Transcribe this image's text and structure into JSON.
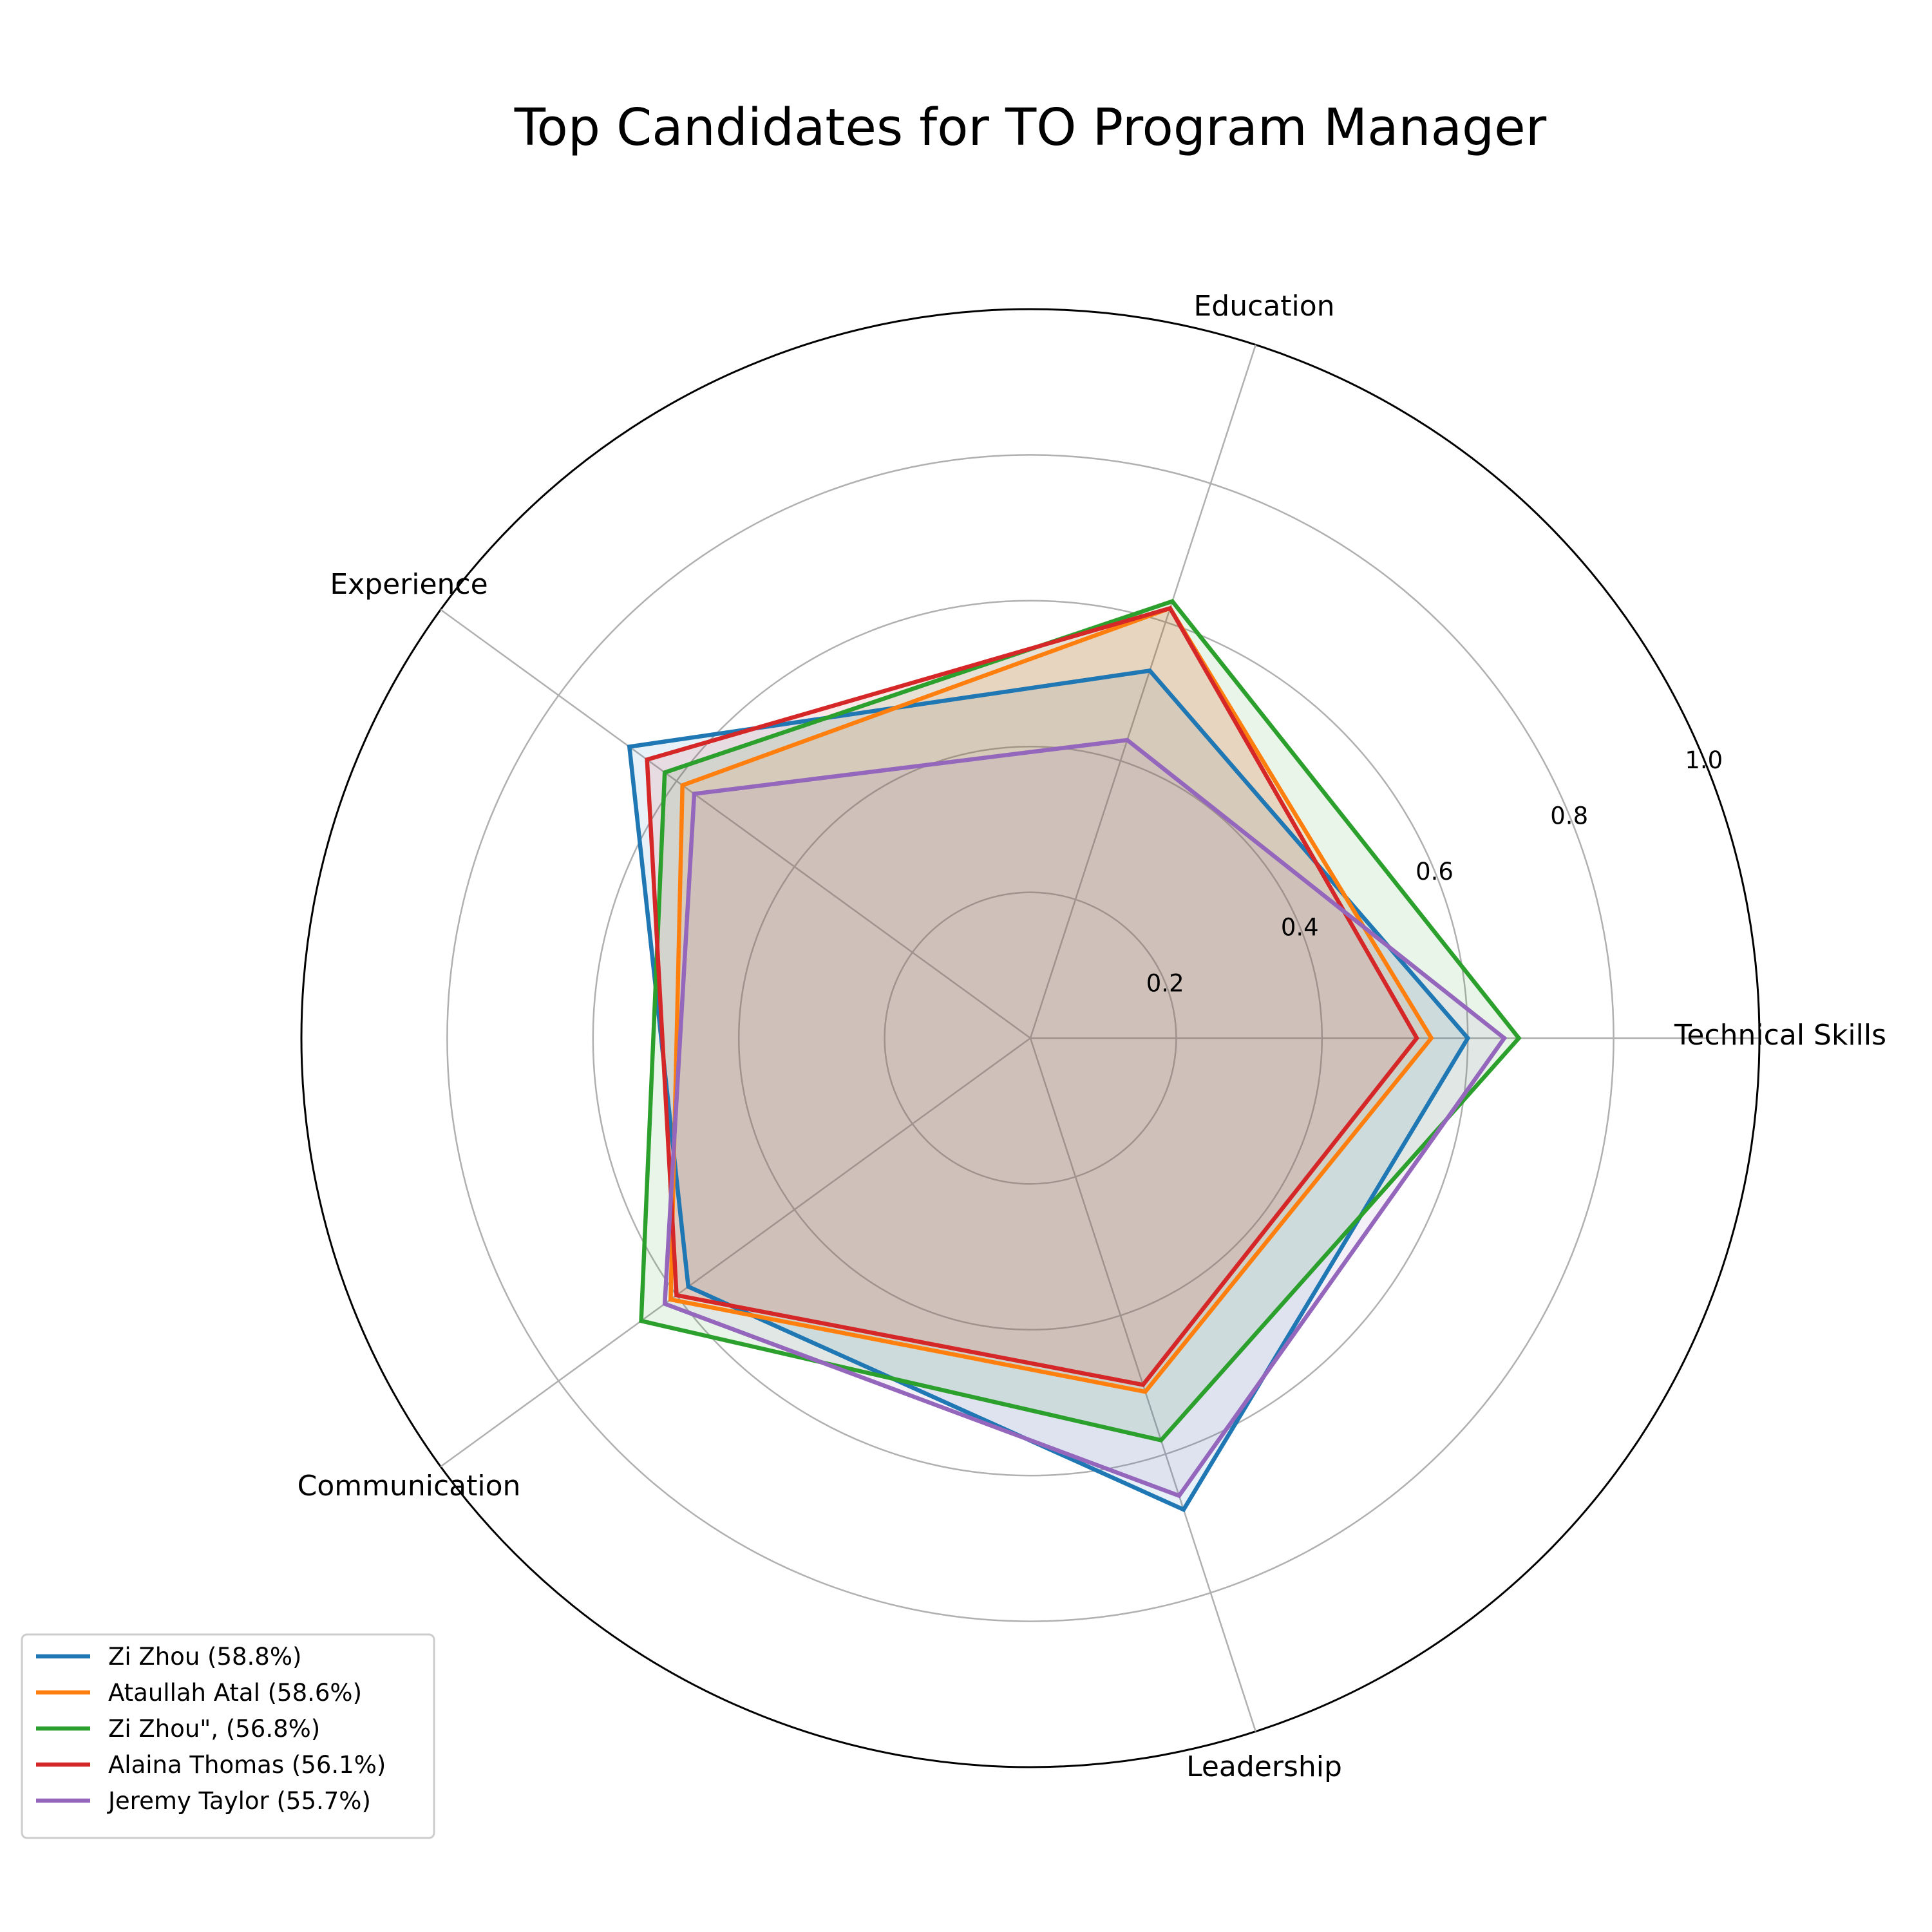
{
  "chart_data": {
    "type": "radar",
    "title": "Top Candidates for TO Program Manager",
    "axes": [
      "Technical Skills",
      "Education",
      "Experience",
      "Communication",
      "Leadership"
    ],
    "rlim": [
      0,
      1.0
    ],
    "r_ticks": [
      "0.2",
      "0.4",
      "0.6",
      "0.8",
      "1.0"
    ],
    "r_tick_values": [
      0.2,
      0.4,
      0.6,
      0.8,
      1.0
    ],
    "grid": true,
    "legend_position": "lower-left",
    "series": [
      {
        "name": "Zi Zhou (58.8%)",
        "color": "#1f77b4",
        "values": [
          0.6,
          0.53,
          0.68,
          0.58,
          0.68
        ]
      },
      {
        "name": "Ataullah Atal (58.6%)",
        "color": "#ff7f0e",
        "values": [
          0.55,
          0.62,
          0.59,
          0.61,
          0.51
        ]
      },
      {
        "name": "Zi Zhou\", (56.8%)",
        "color": "#2ca02c",
        "values": [
          0.67,
          0.63,
          0.62,
          0.66,
          0.58
        ]
      },
      {
        "name": "Alaina Thomas (56.1%)",
        "color": "#d62728",
        "values": [
          0.53,
          0.62,
          0.65,
          0.6,
          0.5
        ]
      },
      {
        "name": "Jeremy Taylor (55.7%)",
        "color": "#9467bd",
        "values": [
          0.65,
          0.43,
          0.57,
          0.62,
          0.66
        ]
      }
    ]
  }
}
